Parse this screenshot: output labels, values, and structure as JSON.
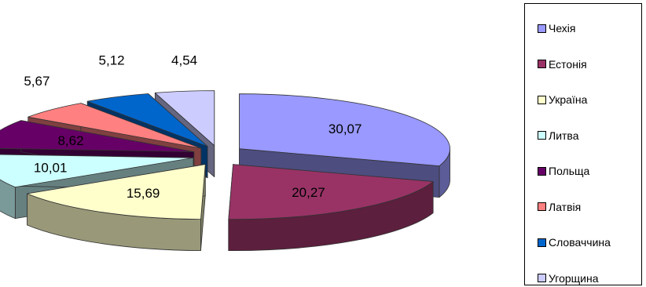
{
  "chart_data": {
    "type": "pie",
    "style": "3d-exploded",
    "categories": [
      "Чехія",
      "Естонія",
      "Україна",
      "Литва",
      "Польща",
      "Латвія",
      "Словаччина",
      "Угорщина"
    ],
    "values": [
      30.07,
      20.27,
      15.69,
      10.01,
      8.62,
      5.67,
      5.12,
      4.54
    ],
    "value_labels": [
      "30,07",
      "20,27",
      "15,69",
      "10,01",
      "8,62",
      "5,67",
      "5,12",
      "4,54"
    ],
    "colors": [
      "#9999FF",
      "#993366",
      "#FFFFCC",
      "#CCFFFF",
      "#660066",
      "#FF8080",
      "#0066CC",
      "#CCCCFF"
    ],
    "title": "",
    "legend_position": "right",
    "legend_icons": [
      "square-swatch",
      "square-swatch",
      "square-swatch",
      "square-swatch",
      "square-swatch",
      "square-swatch",
      "square-swatch",
      "square-swatch"
    ]
  }
}
